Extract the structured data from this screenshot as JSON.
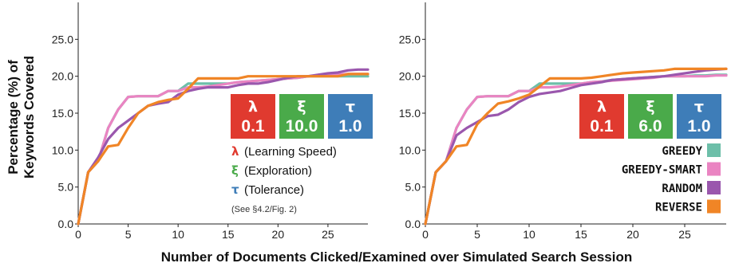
{
  "figure": {
    "ylabel_line1": "Percentage (%) of",
    "ylabel_line2": "Keywords Covered",
    "xlabel": "Number of Documents Clicked/Examined over Simulated Search Session"
  },
  "colors": {
    "greedy": "#6dbfa9",
    "greedy_smart": "#ea84c2",
    "random": "#9a57ad",
    "reverse": "#f08526",
    "lambda_box": "#e03a2f",
    "xi_box": "#4aaa4a",
    "tau_box": "#3e7db8"
  },
  "left_panel": {
    "params": [
      {
        "symbol": "λ",
        "value": "0.1",
        "color": "#e03a2f"
      },
      {
        "symbol": "ξ",
        "value": "10.0",
        "color": "#4aaa4a"
      },
      {
        "symbol": "τ",
        "value": "1.0",
        "color": "#3e7db8"
      }
    ],
    "param_legend": [
      {
        "symbol": "λ",
        "text": "(Learning Speed)",
        "color": "#e03a2f"
      },
      {
        "symbol": "ξ",
        "text": "(Exploration)",
        "color": "#4aaa4a"
      },
      {
        "symbol": "τ",
        "text": "(Tolerance)",
        "color": "#3e7db8"
      }
    ],
    "note": "(See §4.2/Fig. 2)"
  },
  "right_panel": {
    "params": [
      {
        "symbol": "λ",
        "value": "0.1",
        "color": "#e03a2f"
      },
      {
        "symbol": "ξ",
        "value": "6.0",
        "color": "#4aaa4a"
      },
      {
        "symbol": "τ",
        "value": "1.0",
        "color": "#3e7db8"
      }
    ],
    "strategy_legend": [
      {
        "name": "GREEDY",
        "color": "#6dbfa9"
      },
      {
        "name": "GREEDY-SMART",
        "color": "#ea84c2"
      },
      {
        "name": "RANDOM",
        "color": "#9a57ad"
      },
      {
        "name": "REVERSE",
        "color": "#f08526"
      }
    ]
  },
  "chart_data": [
    {
      "type": "line",
      "title": "",
      "xlabel": "Number of Documents Clicked/Examined over Simulated Search Session",
      "ylabel": "Percentage (%) of Keywords Covered",
      "xlim": [
        0,
        29
      ],
      "ylim": [
        0,
        30
      ],
      "xticks": [
        0,
        5,
        10,
        15,
        20,
        25
      ],
      "yticks": [
        0.0,
        5.0,
        10.0,
        15.0,
        20.0,
        25.0
      ],
      "yticklabels": [
        "0.0",
        "5.0",
        "10.0",
        "15.0",
        "20.0",
        "25.0"
      ],
      "grid": false,
      "x": [
        0,
        1,
        2,
        3,
        4,
        5,
        6,
        7,
        8,
        9,
        10,
        11,
        12,
        13,
        14,
        15,
        16,
        17,
        18,
        19,
        20,
        21,
        22,
        23,
        24,
        25,
        26,
        27,
        28,
        29
      ],
      "series": [
        {
          "name": "GREEDY",
          "values": [
            0,
            7,
            8.5,
            13,
            15.5,
            17.2,
            17.3,
            17.3,
            17.3,
            18,
            18,
            19,
            19,
            19,
            19,
            19,
            19.2,
            19.3,
            19.4,
            19.5,
            19.6,
            19.7,
            19.8,
            20,
            20,
            20,
            20,
            20,
            20,
            20
          ]
        },
        {
          "name": "GREEDY-SMART",
          "values": [
            0,
            7,
            8.5,
            13,
            15.5,
            17.2,
            17.3,
            17.3,
            17.3,
            18,
            18,
            18.5,
            18.5,
            18.6,
            18.8,
            19,
            19.2,
            19.3,
            19.4,
            19.5,
            19.6,
            19.7,
            19.8,
            20,
            20.1,
            20.2,
            20.2,
            20.3,
            20.3,
            20.3
          ]
        },
        {
          "name": "RANDOM",
          "values": [
            0,
            7,
            9,
            11.5,
            13,
            14,
            15,
            16,
            16.3,
            16.5,
            17.5,
            18,
            18.3,
            18.5,
            18.5,
            18.5,
            18.8,
            19,
            19,
            19.2,
            19.5,
            19.8,
            20,
            20,
            20.2,
            20.4,
            20.5,
            20.8,
            20.9,
            20.9
          ]
        },
        {
          "name": "REVERSE",
          "values": [
            0,
            7,
            8.5,
            10.5,
            10.7,
            13,
            15,
            16,
            16.5,
            16.8,
            17,
            18.3,
            19.7,
            19.7,
            19.7,
            19.7,
            19.7,
            20,
            20,
            20,
            20,
            20,
            20,
            20,
            20,
            20,
            20,
            20.3,
            20.3,
            20.3
          ]
        }
      ]
    },
    {
      "type": "line",
      "title": "",
      "xlabel": "Number of Documents Clicked/Examined over Simulated Search Session",
      "ylabel": "",
      "xlim": [
        0,
        29
      ],
      "ylim": [
        0,
        30
      ],
      "xticks": [
        0,
        5,
        10,
        15,
        20,
        25
      ],
      "yticks": [
        0.0,
        5.0,
        10.0,
        15.0,
        20.0,
        25.0
      ],
      "yticklabels": [
        "0.0",
        "5.0",
        "10.0",
        "15.0",
        "20.0",
        "25.0"
      ],
      "grid": false,
      "x": [
        0,
        1,
        2,
        3,
        4,
        5,
        6,
        7,
        8,
        9,
        10,
        11,
        12,
        13,
        14,
        15,
        16,
        17,
        18,
        19,
        20,
        21,
        22,
        23,
        24,
        25,
        26,
        27,
        28,
        29
      ],
      "series": [
        {
          "name": "GREEDY",
          "values": [
            0,
            7,
            8.5,
            13,
            15.5,
            17.2,
            17.3,
            17.3,
            17.3,
            18,
            18,
            19,
            19,
            19,
            19,
            19,
            19.2,
            19.3,
            19.5,
            19.6,
            19.7,
            19.8,
            19.9,
            20,
            20,
            20,
            20.1,
            20.1,
            20.2,
            20.2
          ]
        },
        {
          "name": "GREEDY-SMART",
          "values": [
            0,
            7,
            8.5,
            13,
            15.5,
            17.2,
            17.3,
            17.3,
            17.3,
            18,
            18,
            18.5,
            18.5,
            18.6,
            18.8,
            19,
            19.2,
            19.3,
            19.4,
            19.5,
            19.6,
            19.7,
            19.8,
            20,
            20,
            20,
            20,
            20,
            20.1,
            20.1
          ]
        },
        {
          "name": "RANDOM",
          "values": [
            0,
            7,
            8.5,
            12,
            13,
            13.8,
            14.6,
            14.8,
            15.5,
            16.5,
            17.2,
            17.6,
            17.8,
            18,
            18.4,
            18.8,
            19,
            19.2,
            19.5,
            19.6,
            19.7,
            19.8,
            19.9,
            20,
            20.2,
            20.4,
            20.6,
            20.8,
            20.9,
            21
          ]
        },
        {
          "name": "REVERSE",
          "values": [
            0,
            7,
            8.5,
            10.5,
            10.7,
            13.5,
            15,
            16.3,
            16.6,
            17,
            17.5,
            18.6,
            19.7,
            19.7,
            19.7,
            19.7,
            19.8,
            20,
            20.2,
            20.4,
            20.5,
            20.6,
            20.7,
            20.8,
            21,
            21,
            21,
            21,
            21,
            21
          ]
        }
      ]
    }
  ]
}
